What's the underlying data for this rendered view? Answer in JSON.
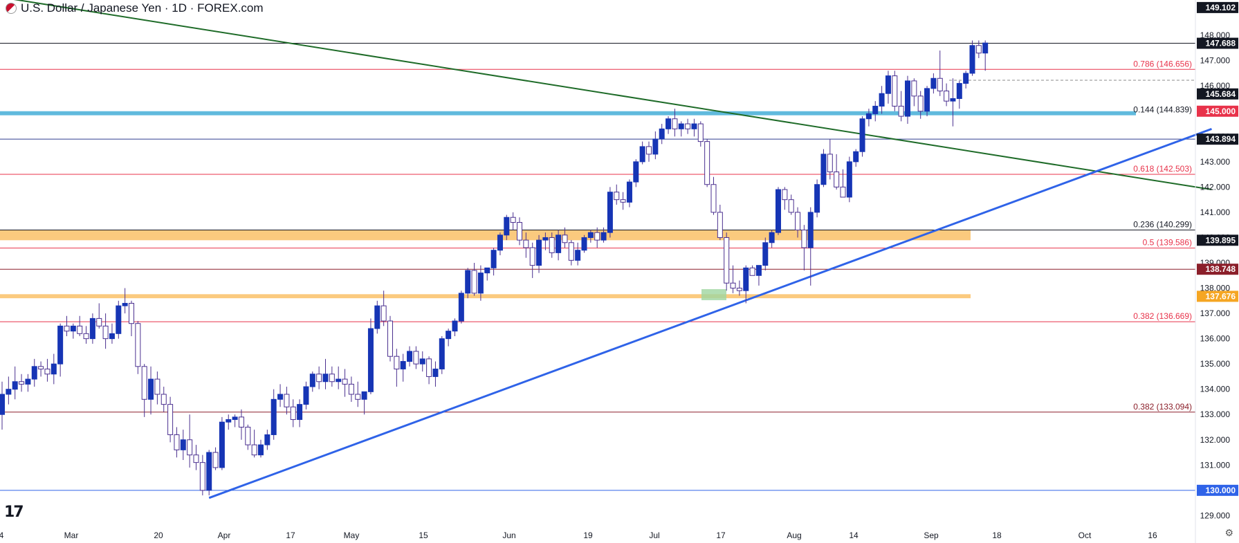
{
  "title": "U.S. Dollar / Japanese Yen · 1D · FOREX.com",
  "icons": {
    "flag": "usd-jpy-flag-icon",
    "logo": "tradingview-logo-icon",
    "settings": "settings-icon"
  },
  "colors": {
    "up": "#1635b5",
    "down": "#ffffff",
    "wick": "#4a2f8f",
    "down_border": "#4a2f8f",
    "fib": "#e8324a",
    "trend_up": "#2f63e8",
    "trend_down": "#1e6b28",
    "support_band": "#fbc470",
    "blue_band": "#4fb3d9"
  },
  "chart_data": {
    "type": "candlestick",
    "title": "U.S. Dollar / Japanese Yen · 1D · FOREX.com",
    "ylim": [
      128.6,
      149.4
    ],
    "y_ticks": [
      129.0,
      130.0,
      131.0,
      132.0,
      133.0,
      134.0,
      135.0,
      136.0,
      137.0,
      138.0,
      139.0,
      140.0,
      141.0,
      142.0,
      143.0,
      144.0,
      145.0,
      146.0,
      147.0,
      148.0
    ],
    "x_tick_labels": [
      "4",
      "Mar",
      "20",
      "Apr",
      "17",
      "May",
      "15",
      "Jun",
      "19",
      "Jul",
      "17",
      "Aug",
      "14",
      "Sep",
      "18",
      "Oct",
      "16"
    ],
    "price_labels": [
      {
        "value": 149.102,
        "text": "149.102",
        "bg": "#131722"
      },
      {
        "value": 147.688,
        "text": "147.688",
        "bg": "#131722"
      },
      {
        "value": 145.684,
        "text": "145.684",
        "bg": "#131722"
      },
      {
        "value": 145.0,
        "text": "145.000",
        "bg": "#e8324a"
      },
      {
        "value": 143.894,
        "text": "143.894",
        "bg": "#131722"
      },
      {
        "value": 139.895,
        "text": "139.895",
        "bg": "#131722"
      },
      {
        "value": 138.748,
        "text": "138.748",
        "bg": "#8b1f2a"
      },
      {
        "value": 137.676,
        "text": "137.676",
        "bg": "#f5a623"
      },
      {
        "value": 130.0,
        "text": "130.000",
        "bg": "#2f63e8"
      }
    ],
    "levels": [
      {
        "value": 147.688,
        "color": "#131722"
      },
      {
        "value": 146.656,
        "color": "#e8324a"
      },
      {
        "value": 143.894,
        "color": "#2f3c8f"
      },
      {
        "value": 142.503,
        "color": "#e8324a"
      },
      {
        "value": 140.299,
        "color": "#131722"
      },
      {
        "value": 139.586,
        "color": "#e8324a"
      },
      {
        "value": 138.748,
        "color": "#8b1f2a"
      },
      {
        "value": 136.669,
        "color": "#e8324a"
      },
      {
        "value": 133.094,
        "color": "#8b1f2a"
      },
      {
        "value": 130.0,
        "color": "#2f63e8"
      }
    ],
    "fib_labels": [
      {
        "value": 146.656,
        "text": "0.786 (146.656)",
        "color": "#e8324a"
      },
      {
        "value": 144.839,
        "text": "0.144 (144.839)",
        "color": "#131722"
      },
      {
        "value": 142.503,
        "text": "0.618 (142.503)",
        "color": "#e8324a"
      },
      {
        "value": 140.299,
        "text": "0.236 (140.299)",
        "color": "#131722"
      },
      {
        "value": 139.586,
        "text": "0.5 (139.586)",
        "color": "#e8324a"
      },
      {
        "value": 136.669,
        "text": "0.382 (136.669)",
        "color": "#e8324a"
      },
      {
        "value": 133.094,
        "text": "0.382 (133.094)",
        "color": "#8b1f2a"
      }
    ],
    "zones": [
      {
        "from": 144.839,
        "to": 145.0,
        "color": "#4fb3d9"
      },
      {
        "from": 139.895,
        "to": 140.299,
        "color": "#fbc470"
      },
      {
        "from": 137.6,
        "to": 137.76,
        "color": "#fbc470"
      }
    ],
    "trendlines": [
      {
        "from": [
          0,
          149.5
        ],
        "to": [
          187,
          141.9
        ],
        "color": "#1e6b28"
      },
      {
        "from": [
          32,
          129.7
        ],
        "to": [
          187,
          144.3
        ],
        "color": "#2f63e8"
      }
    ],
    "candles": [
      [
        133.0,
        134.3,
        132.4,
        133.8
      ],
      [
        133.8,
        134.5,
        133.4,
        134.0
      ],
      [
        134.0,
        134.9,
        133.6,
        134.3
      ],
      [
        134.3,
        134.6,
        133.9,
        134.2
      ],
      [
        134.2,
        134.6,
        133.9,
        134.4
      ],
      [
        134.4,
        135.2,
        134.1,
        134.9
      ],
      [
        134.9,
        135.1,
        134.5,
        134.8
      ],
      [
        134.8,
        135.2,
        134.3,
        134.6
      ],
      [
        134.6,
        135.4,
        134.2,
        135.0
      ],
      [
        135.0,
        136.6,
        134.5,
        136.5
      ],
      [
        136.5,
        136.9,
        136.1,
        136.3
      ],
      [
        136.3,
        136.6,
        136.0,
        136.5
      ],
      [
        136.5,
        136.9,
        136.1,
        136.2
      ],
      [
        136.2,
        136.5,
        135.8,
        136.0
      ],
      [
        136.0,
        137.0,
        135.8,
        136.8
      ],
      [
        136.8,
        137.4,
        136.4,
        136.5
      ],
      [
        136.5,
        137.0,
        135.6,
        136.0
      ],
      [
        136.0,
        136.6,
        135.8,
        136.2
      ],
      [
        136.2,
        137.5,
        136.0,
        137.3
      ],
      [
        137.3,
        138.0,
        137.0,
        137.4
      ],
      [
        137.4,
        137.5,
        136.1,
        136.6
      ],
      [
        136.6,
        136.7,
        134.6,
        134.9
      ],
      [
        134.9,
        135.0,
        132.9,
        133.6
      ],
      [
        133.6,
        134.9,
        133.0,
        134.4
      ],
      [
        134.4,
        134.7,
        133.4,
        133.8
      ],
      [
        133.8,
        134.1,
        133.1,
        133.4
      ],
      [
        133.4,
        133.7,
        131.9,
        132.2
      ],
      [
        132.2,
        132.5,
        131.3,
        131.6
      ],
      [
        131.6,
        132.4,
        131.2,
        132.0
      ],
      [
        132.0,
        133.0,
        130.9,
        131.4
      ],
      [
        131.4,
        131.8,
        130.8,
        131.1
      ],
      [
        131.1,
        131.4,
        129.8,
        130.0
      ],
      [
        130.0,
        131.6,
        129.8,
        131.5
      ],
      [
        131.5,
        131.7,
        130.8,
        130.9
      ],
      [
        130.9,
        132.9,
        130.8,
        132.7
      ],
      [
        132.7,
        133.0,
        132.4,
        132.8
      ],
      [
        132.8,
        133.0,
        132.5,
        132.9
      ],
      [
        132.9,
        133.2,
        132.0,
        132.5
      ],
      [
        132.5,
        132.6,
        131.6,
        131.8
      ],
      [
        131.8,
        132.4,
        131.3,
        131.4
      ],
      [
        131.4,
        132.0,
        131.3,
        131.8
      ],
      [
        131.8,
        132.4,
        131.6,
        132.2
      ],
      [
        132.2,
        134.0,
        132.0,
        133.6
      ],
      [
        133.6,
        134.2,
        133.3,
        133.8
      ],
      [
        133.8,
        134.1,
        133.0,
        133.3
      ],
      [
        133.3,
        133.6,
        132.5,
        132.8
      ],
      [
        132.8,
        133.6,
        132.5,
        133.4
      ],
      [
        133.4,
        134.3,
        133.2,
        134.1
      ],
      [
        134.1,
        134.7,
        133.9,
        134.6
      ],
      [
        134.6,
        134.9,
        134.0,
        134.3
      ],
      [
        134.3,
        135.2,
        134.0,
        134.6
      ],
      [
        134.6,
        134.9,
        134.1,
        134.3
      ],
      [
        134.3,
        134.9,
        134.0,
        134.4
      ],
      [
        134.4,
        134.8,
        133.7,
        134.2
      ],
      [
        134.2,
        134.5,
        133.5,
        133.8
      ],
      [
        133.8,
        134.3,
        133.3,
        133.6
      ],
      [
        133.6,
        133.9,
        133.0,
        133.9
      ],
      [
        133.9,
        136.8,
        133.8,
        136.4
      ],
      [
        136.4,
        137.5,
        136.2,
        137.3
      ],
      [
        137.3,
        137.9,
        136.5,
        136.7
      ],
      [
        136.7,
        136.9,
        135.1,
        135.3
      ],
      [
        135.3,
        135.6,
        134.1,
        134.8
      ],
      [
        134.8,
        135.4,
        134.3,
        135.1
      ],
      [
        135.1,
        135.7,
        134.9,
        135.5
      ],
      [
        135.5,
        135.7,
        134.8,
        135.0
      ],
      [
        135.0,
        135.5,
        134.7,
        135.2
      ],
      [
        135.2,
        135.3,
        134.2,
        134.5
      ],
      [
        134.5,
        135.1,
        134.1,
        134.8
      ],
      [
        134.8,
        136.1,
        134.6,
        136.0
      ],
      [
        136.0,
        136.4,
        135.7,
        136.3
      ],
      [
        136.3,
        136.8,
        136.1,
        136.7
      ],
      [
        136.7,
        137.9,
        136.6,
        137.8
      ],
      [
        137.8,
        138.8,
        137.6,
        138.7
      ],
      [
        138.7,
        139.0,
        137.7,
        137.8
      ],
      [
        137.8,
        138.9,
        137.5,
        138.6
      ],
      [
        138.6,
        138.8,
        138.3,
        138.8
      ],
      [
        138.8,
        139.6,
        138.5,
        139.5
      ],
      [
        139.5,
        140.2,
        139.3,
        140.1
      ],
      [
        140.1,
        140.9,
        139.9,
        140.8
      ],
      [
        140.8,
        141.0,
        140.3,
        140.6
      ],
      [
        140.6,
        140.8,
        139.7,
        139.9
      ],
      [
        139.9,
        140.2,
        139.2,
        139.6
      ],
      [
        139.6,
        139.8,
        138.4,
        138.9
      ],
      [
        138.9,
        140.1,
        138.6,
        139.9
      ],
      [
        139.9,
        140.2,
        139.5,
        140.0
      ],
      [
        140.0,
        140.2,
        139.2,
        139.4
      ],
      [
        139.4,
        140.3,
        139.1,
        140.1
      ],
      [
        140.1,
        140.4,
        139.6,
        139.8
      ],
      [
        139.8,
        139.9,
        138.9,
        139.1
      ],
      [
        139.1,
        139.8,
        138.9,
        139.5
      ],
      [
        139.5,
        140.1,
        139.4,
        140.0
      ],
      [
        140.0,
        140.3,
        139.8,
        140.2
      ],
      [
        140.2,
        140.4,
        139.6,
        139.9
      ],
      [
        139.9,
        140.4,
        139.8,
        140.2
      ],
      [
        140.2,
        142.0,
        140.0,
        141.8
      ],
      [
        141.8,
        142.1,
        141.3,
        141.5
      ],
      [
        141.5,
        141.8,
        141.1,
        141.4
      ],
      [
        141.4,
        142.3,
        141.2,
        142.2
      ],
      [
        142.2,
        143.1,
        142.0,
        143.0
      ],
      [
        143.0,
        143.8,
        142.9,
        143.6
      ],
      [
        143.6,
        143.8,
        143.0,
        143.3
      ],
      [
        143.3,
        144.2,
        143.1,
        143.9
      ],
      [
        143.9,
        144.5,
        143.7,
        144.3
      ],
      [
        144.3,
        144.8,
        144.1,
        144.7
      ],
      [
        144.7,
        145.1,
        144.0,
        144.3
      ],
      [
        144.3,
        144.6,
        144.0,
        144.5
      ],
      [
        144.5,
        144.7,
        144.1,
        144.3
      ],
      [
        144.3,
        144.7,
        144.0,
        144.5
      ],
      [
        144.5,
        144.6,
        143.6,
        143.8
      ],
      [
        143.8,
        143.9,
        142.0,
        142.1
      ],
      [
        142.1,
        142.4,
        140.9,
        141.0
      ],
      [
        141.0,
        141.3,
        139.9,
        140.0
      ],
      [
        140.0,
        140.2,
        137.9,
        138.2
      ],
      [
        138.2,
        138.9,
        137.8,
        138.0
      ],
      [
        138.0,
        138.3,
        137.7,
        137.9
      ],
      [
        137.9,
        138.9,
        137.4,
        138.8
      ],
      [
        138.8,
        138.9,
        138.5,
        138.5
      ],
      [
        138.5,
        138.9,
        138.1,
        138.9
      ],
      [
        138.9,
        140.0,
        138.7,
        139.8
      ],
      [
        139.8,
        140.3,
        139.6,
        140.2
      ],
      [
        140.2,
        142.0,
        140.1,
        141.9
      ],
      [
        141.9,
        142.0,
        141.1,
        141.5
      ],
      [
        141.5,
        141.7,
        140.9,
        141.0
      ],
      [
        141.0,
        141.2,
        140.0,
        140.3
      ],
      [
        140.3,
        140.5,
        138.7,
        139.6
      ],
      [
        139.6,
        141.2,
        138.1,
        141.0
      ],
      [
        141.0,
        142.3,
        140.8,
        142.1
      ],
      [
        142.1,
        143.5,
        142.0,
        143.3
      ],
      [
        143.3,
        143.9,
        142.3,
        142.6
      ],
      [
        142.6,
        143.3,
        141.9,
        142.0
      ],
      [
        142.0,
        142.7,
        141.6,
        141.6
      ],
      [
        141.6,
        143.2,
        141.4,
        143.0
      ],
      [
        143.0,
        143.5,
        142.8,
        143.4
      ],
      [
        143.4,
        144.8,
        143.2,
        144.7
      ],
      [
        144.7,
        145.1,
        144.4,
        144.9
      ],
      [
        144.9,
        145.4,
        144.6,
        145.2
      ],
      [
        145.2,
        146.0,
        144.9,
        145.7
      ],
      [
        145.7,
        146.6,
        145.3,
        146.4
      ],
      [
        146.4,
        146.6,
        145.0,
        145.2
      ],
      [
        145.2,
        145.8,
        144.6,
        144.8
      ],
      [
        144.8,
        146.4,
        144.5,
        146.2
      ],
      [
        146.2,
        146.3,
        145.2,
        145.6
      ],
      [
        145.6,
        145.8,
        144.7,
        145.0
      ],
      [
        145.0,
        146.0,
        144.8,
        145.9
      ],
      [
        145.9,
        146.5,
        145.7,
        146.3
      ],
      [
        146.3,
        147.4,
        145.6,
        145.8
      ],
      [
        145.8,
        146.1,
        145.2,
        145.4
      ],
      [
        145.4,
        146.3,
        144.4,
        145.5
      ],
      [
        145.5,
        146.2,
        145.1,
        146.1
      ],
      [
        146.1,
        146.6,
        145.9,
        146.5
      ],
      [
        146.5,
        147.8,
        146.4,
        147.6
      ],
      [
        147.6,
        147.8,
        147.1,
        147.3
      ],
      [
        147.3,
        147.8,
        146.6,
        147.7
      ]
    ]
  }
}
